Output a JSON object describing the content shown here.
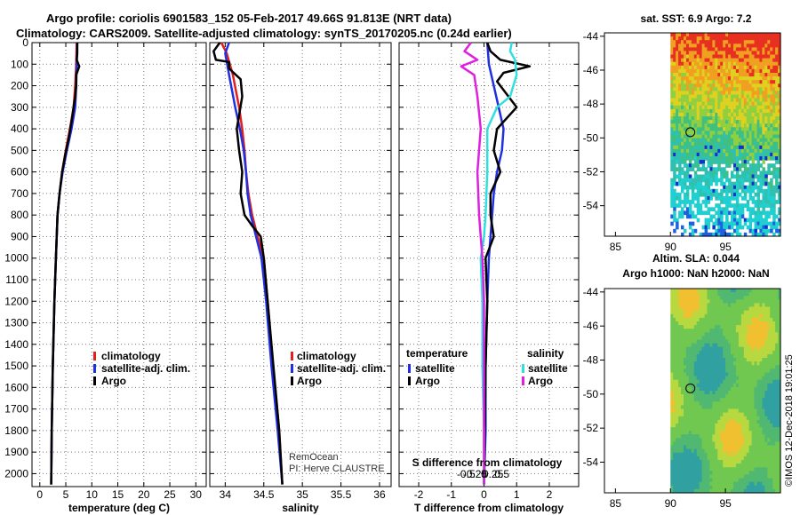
{
  "header": {
    "line1": "Argo profile: coriolis 6901583_152 05-Feb-2017 49.66S 91.813E (NRT data)",
    "line2": "Climatology: CARS2009. Satellite-adjusted climatology: synTS_20170205.nc (0.24d earlier)"
  },
  "credit": "©IMOS 12-Dec-2018 19:01:25",
  "colors": {
    "climatology": "#e02020",
    "satellite": "#2030e0",
    "argo": "#000000",
    "sat_salinity": "#30e0e0",
    "argo_salinity": "#e020e0"
  },
  "chart_data": [
    {
      "type": "line",
      "id": "temperature",
      "xlabel": "temperature (deg C)",
      "xlim": [
        -1.5,
        32
      ],
      "xticks": [
        0,
        5,
        10,
        15,
        20,
        25,
        30
      ],
      "ylim": [
        0,
        2060
      ],
      "yticks": [
        0,
        100,
        200,
        300,
        400,
        500,
        600,
        700,
        800,
        900,
        1000,
        1100,
        1200,
        1300,
        1400,
        1500,
        1600,
        1700,
        1800,
        1900,
        2000
      ],
      "legend": [
        "climatology",
        "satellite-adj. clim.",
        "Argo"
      ],
      "series": [
        {
          "name": "climatology",
          "x": [
            7.1,
            7.0,
            6.8,
            6.5,
            5.8,
            5.0,
            4.3,
            3.8,
            3.4,
            3.1,
            2.8,
            2.5,
            2.3,
            2.2
          ],
          "y": [
            0,
            100,
            200,
            300,
            400,
            500,
            600,
            700,
            800,
            1000,
            1200,
            1500,
            1800,
            2050
          ]
        },
        {
          "name": "satellite-adj. clim.",
          "x": [
            7.2,
            7.1,
            7.0,
            6.8,
            6.1,
            5.2,
            4.4,
            3.8,
            3.4,
            3.1,
            2.8,
            2.5,
            2.3,
            2.2
          ],
          "y": [
            0,
            100,
            200,
            300,
            400,
            500,
            600,
            700,
            800,
            1000,
            1200,
            1500,
            1800,
            2050
          ]
        },
        {
          "name": "Argo",
          "x": [
            7.2,
            7.2,
            7.1,
            7.6,
            7.0,
            7.0,
            6.8,
            6.5,
            6.2,
            5.5,
            4.9,
            4.3,
            3.8,
            3.4,
            3.1,
            2.8,
            2.5,
            2.3,
            2.2
          ],
          "y": [
            0,
            50,
            80,
            110,
            150,
            200,
            250,
            300,
            350,
            450,
            520,
            600,
            700,
            800,
            1000,
            1200,
            1500,
            1800,
            2050
          ]
        }
      ]
    },
    {
      "type": "line",
      "id": "salinity",
      "xlabel": "salinity",
      "xlim": [
        33.8,
        36.15
      ],
      "xticks": [
        34,
        34.5,
        35,
        35.5,
        36
      ],
      "xtick_labels": [
        "34",
        "34.5",
        "35",
        "35.5",
        "36"
      ],
      "ylim": [
        0,
        2060
      ],
      "legend": [
        "climatology",
        "satellite-adj. clim.",
        "Argo"
      ],
      "annotations": [
        "RemOcean",
        "PI: Herve CLAUSTRE"
      ],
      "series": [
        {
          "name": "climatology",
          "x": [
            33.95,
            34.02,
            34.1,
            34.18,
            34.22,
            34.25,
            34.27,
            34.3,
            34.35,
            34.42,
            34.5,
            34.55,
            34.62,
            34.7,
            34.74
          ],
          "y": [
            0,
            50,
            150,
            300,
            400,
            500,
            600,
            700,
            800,
            900,
            1000,
            1200,
            1500,
            1800,
            2050
          ]
        },
        {
          "name": "satellite-adj. clim.",
          "x": [
            34.05,
            34.0,
            34.05,
            34.13,
            34.19,
            34.24,
            34.27,
            34.29,
            34.33,
            34.4,
            34.47,
            34.53,
            34.6,
            34.68,
            34.74
          ],
          "y": [
            0,
            50,
            150,
            300,
            400,
            500,
            600,
            700,
            800,
            900,
            1000,
            1200,
            1500,
            1800,
            2050
          ]
        },
        {
          "name": "Argo",
          "x": [
            33.93,
            33.85,
            33.88,
            34.05,
            34.05,
            34.2,
            34.22,
            34.15,
            34.18,
            34.22,
            34.2,
            34.25,
            34.35,
            34.46,
            34.5,
            34.6,
            34.7,
            34.74
          ],
          "y": [
            0,
            40,
            80,
            90,
            120,
            170,
            250,
            400,
            500,
            600,
            700,
            800,
            850,
            900,
            1000,
            1400,
            1800,
            2050
          ]
        }
      ]
    },
    {
      "type": "line",
      "id": "difference",
      "xlabel": "T difference from climatology",
      "xlabel_top": "S difference from climatology",
      "xlim": [
        -2.6,
        2.9
      ],
      "xticks": [
        -2,
        -1,
        0,
        1,
        2
      ],
      "s_ticks": [
        -0.5,
        -0.25,
        0,
        0.25,
        0.5
      ],
      "s_tick_labels": [
        "-0.5",
        "-0.25",
        "0",
        "0.25",
        "0.5"
      ],
      "ylim": [
        0,
        2060
      ],
      "legend_left_title": "temperature",
      "legend_right_title": "salinity",
      "legend_left": [
        "satellite",
        "Argo"
      ],
      "legend_right": [
        "satellite",
        "Argo"
      ],
      "series": [
        {
          "name": "temperature satellite",
          "x": [
            0.1,
            0.15,
            0.3,
            0.45,
            0.6,
            0.55,
            0.4,
            0.3,
            0.25,
            0.2,
            0.15,
            0.1,
            0.05,
            0.05,
            0.0
          ],
          "y": [
            0,
            100,
            200,
            300,
            400,
            500,
            600,
            700,
            800,
            900,
            1000,
            1200,
            1500,
            1800,
            2050
          ]
        },
        {
          "name": "temperature Argo",
          "x": [
            0.1,
            0.2,
            0.5,
            1.4,
            0.6,
            0.4,
            0.8,
            1.0,
            0.4,
            0.3,
            0.5,
            0.2,
            0.2,
            0.3,
            0.05,
            0.1,
            0.05,
            0.0
          ],
          "y": [
            0,
            40,
            80,
            110,
            140,
            180,
            260,
            300,
            400,
            500,
            600,
            700,
            800,
            900,
            1000,
            1200,
            1500,
            2050
          ]
        },
        {
          "name": "salinity satellite",
          "x": [
            0.85,
            0.8,
            0.95,
            1.0,
            0.8,
            0.4,
            0.1,
            0.1,
            0.05,
            0.0,
            -0.1,
            -0.05,
            -0.05,
            0.0,
            0.0
          ],
          "y": [
            0,
            40,
            80,
            150,
            250,
            300,
            400,
            600,
            800,
            900,
            1000,
            1200,
            1500,
            1800,
            2050
          ]
        },
        {
          "name": "salinity Argo",
          "x": [
            -0.4,
            -0.6,
            -0.2,
            -0.7,
            -0.3,
            -0.2,
            -0.1,
            -0.2,
            -0.15,
            -0.1,
            -0.05,
            0.0,
            0.0
          ],
          "y": [
            0,
            40,
            80,
            110,
            150,
            250,
            400,
            600,
            800,
            900,
            1000,
            1200,
            2050
          ]
        }
      ]
    },
    {
      "type": "heatmap",
      "id": "sst_map",
      "title": "sat. SST: 6.9 Argo: 7.2",
      "xlim": [
        84,
        100
      ],
      "xticks": [
        85,
        90,
        95
      ],
      "ylim": [
        -55.8,
        -43.8
      ],
      "yticks": [
        -44,
        -46,
        -48,
        -50,
        -52,
        -54
      ],
      "float_position": [
        91.813,
        -49.66
      ]
    },
    {
      "type": "heatmap",
      "id": "sla_map",
      "title": "Altim. SLA: 0.044",
      "subtitle": "Argo h1000: NaN h2000: NaN",
      "xlim": [
        84,
        100
      ],
      "xticks": [
        85,
        90,
        95
      ],
      "ylim": [
        -55.8,
        -43.8
      ],
      "yticks": [
        -44,
        -46,
        -48,
        -50,
        -52,
        -54
      ],
      "float_position": [
        91.813,
        -49.66
      ]
    }
  ]
}
